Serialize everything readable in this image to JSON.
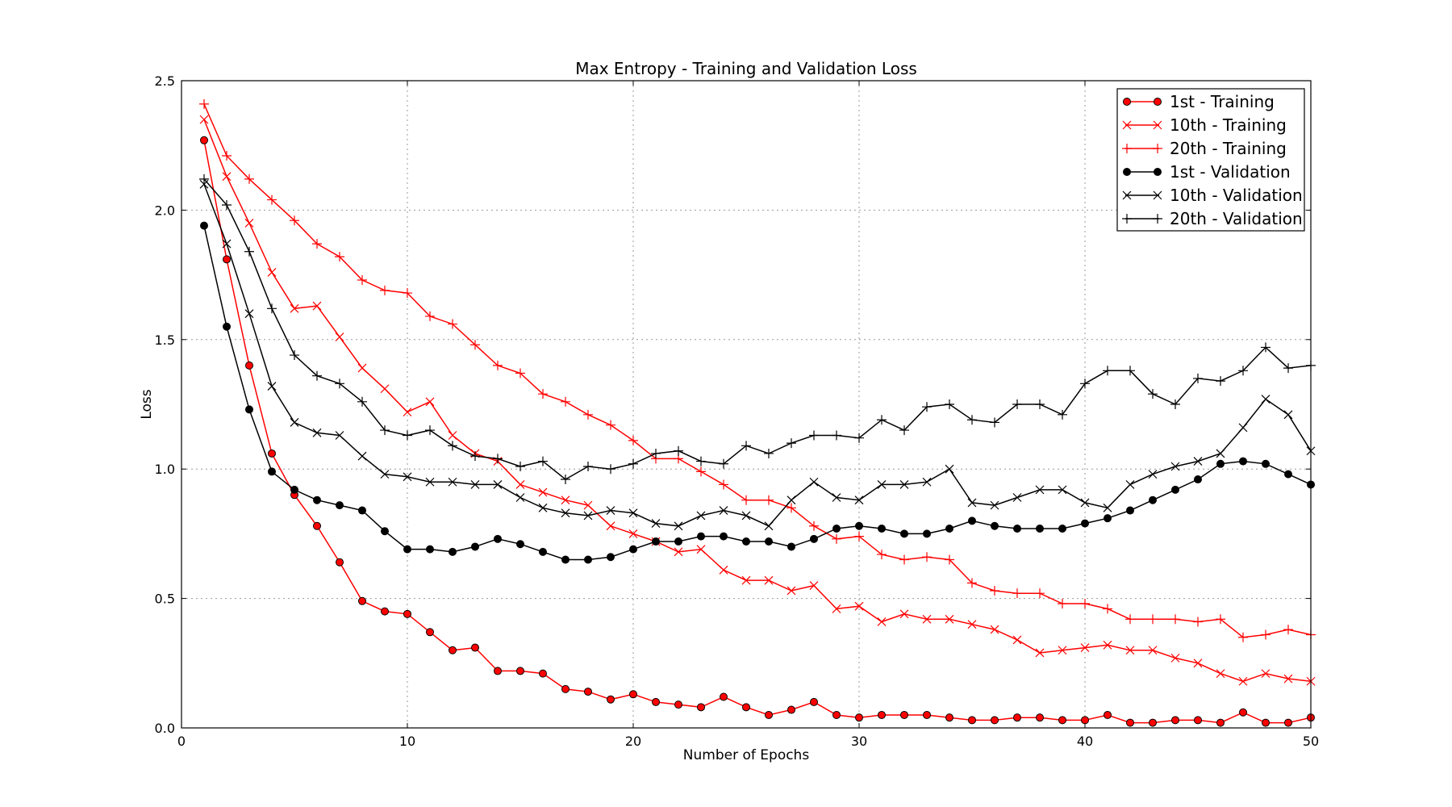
{
  "chart_data": {
    "type": "line",
    "title": "Max Entropy - Training and Validation Loss",
    "xlabel": "Number of Epochs",
    "ylabel": "Loss",
    "xlim": [
      0,
      50
    ],
    "ylim": [
      0,
      2.5
    ],
    "xticks": [
      0,
      10,
      20,
      30,
      40,
      50
    ],
    "yticks": [
      0.0,
      0.5,
      1.0,
      1.5,
      2.0,
      2.5
    ],
    "xtick_labels": [
      "0",
      "10",
      "20",
      "30",
      "40",
      "50"
    ],
    "ytick_labels": [
      "0.0",
      "0.5",
      "1.0",
      "1.5",
      "2.0",
      "2.5"
    ],
    "grid": true,
    "legend_position": "top-right",
    "x": [
      1,
      2,
      3,
      4,
      5,
      6,
      7,
      8,
      9,
      10,
      11,
      12,
      13,
      14,
      15,
      16,
      17,
      18,
      19,
      20,
      21,
      22,
      23,
      24,
      25,
      26,
      27,
      28,
      29,
      30,
      31,
      32,
      33,
      34,
      35,
      36,
      37,
      38,
      39,
      40,
      41,
      42,
      43,
      44,
      45,
      46,
      47,
      48,
      49,
      50
    ],
    "series": [
      {
        "name": "1st - Training",
        "color": "#ff0000",
        "marker": "circle",
        "values": [
          2.27,
          1.81,
          1.4,
          1.06,
          0.9,
          0.78,
          0.64,
          0.49,
          0.45,
          0.44,
          0.37,
          0.3,
          0.31,
          0.22,
          0.22,
          0.21,
          0.15,
          0.14,
          0.11,
          0.13,
          0.1,
          0.09,
          0.08,
          0.12,
          0.08,
          0.05,
          0.07,
          0.1,
          0.05,
          0.04,
          0.05,
          0.05,
          0.05,
          0.04,
          0.03,
          0.03,
          0.04,
          0.04,
          0.03,
          0.03,
          0.05,
          0.02,
          0.02,
          0.03,
          0.03,
          0.02,
          0.06,
          0.02,
          0.02,
          0.04
        ]
      },
      {
        "name": "10th - Training",
        "color": "#ff0000",
        "marker": "x",
        "values": [
          2.35,
          2.13,
          1.95,
          1.76,
          1.62,
          1.63,
          1.51,
          1.39,
          1.31,
          1.22,
          1.26,
          1.13,
          1.06,
          1.03,
          0.94,
          0.91,
          0.88,
          0.86,
          0.78,
          0.75,
          0.72,
          0.68,
          0.69,
          0.61,
          0.57,
          0.57,
          0.53,
          0.55,
          0.46,
          0.47,
          0.41,
          0.44,
          0.42,
          0.42,
          0.4,
          0.38,
          0.34,
          0.29,
          0.3,
          0.31,
          0.32,
          0.3,
          0.3,
          0.27,
          0.25,
          0.21,
          0.18,
          0.21,
          0.19,
          0.18
        ]
      },
      {
        "name": "20th - Training",
        "color": "#ff0000",
        "marker": "plus",
        "values": [
          2.41,
          2.21,
          2.12,
          2.04,
          1.96,
          1.87,
          1.82,
          1.73,
          1.69,
          1.68,
          1.59,
          1.56,
          1.48,
          1.4,
          1.37,
          1.29,
          1.26,
          1.21,
          1.17,
          1.11,
          1.04,
          1.04,
          0.99,
          0.94,
          0.88,
          0.88,
          0.85,
          0.78,
          0.73,
          0.74,
          0.67,
          0.65,
          0.66,
          0.65,
          0.56,
          0.53,
          0.52,
          0.52,
          0.48,
          0.48,
          0.46,
          0.42,
          0.42,
          0.42,
          0.41,
          0.42,
          0.35,
          0.36,
          0.38,
          0.36
        ]
      },
      {
        "name": "1st - Validation",
        "color": "#000000",
        "marker": "circle",
        "values": [
          1.94,
          1.55,
          1.23,
          0.99,
          0.92,
          0.88,
          0.86,
          0.84,
          0.76,
          0.69,
          0.69,
          0.68,
          0.7,
          0.73,
          0.71,
          0.68,
          0.65,
          0.65,
          0.66,
          0.69,
          0.72,
          0.72,
          0.74,
          0.74,
          0.72,
          0.72,
          0.7,
          0.73,
          0.77,
          0.78,
          0.77,
          0.75,
          0.75,
          0.77,
          0.8,
          0.78,
          0.77,
          0.77,
          0.77,
          0.79,
          0.81,
          0.84,
          0.88,
          0.92,
          0.96,
          1.02,
          1.03,
          1.02,
          0.98,
          0.94
        ]
      },
      {
        "name": "10th - Validation",
        "color": "#000000",
        "marker": "x",
        "values": [
          2.1,
          1.87,
          1.6,
          1.32,
          1.18,
          1.14,
          1.13,
          1.05,
          0.98,
          0.97,
          0.95,
          0.95,
          0.94,
          0.94,
          0.89,
          0.85,
          0.83,
          0.82,
          0.84,
          0.83,
          0.79,
          0.78,
          0.82,
          0.84,
          0.82,
          0.78,
          0.88,
          0.95,
          0.89,
          0.88,
          0.94,
          0.94,
          0.95,
          1.0,
          0.87,
          0.86,
          0.89,
          0.92,
          0.92,
          0.87,
          0.85,
          0.94,
          0.98,
          1.01,
          1.03,
          1.06,
          1.16,
          1.27,
          1.21,
          1.07
        ]
      },
      {
        "name": "20th - Validation",
        "color": "#000000",
        "marker": "plus",
        "values": [
          2.12,
          2.02,
          1.84,
          1.62,
          1.44,
          1.36,
          1.33,
          1.26,
          1.15,
          1.13,
          1.15,
          1.09,
          1.05,
          1.04,
          1.01,
          1.03,
          0.96,
          1.01,
          1.0,
          1.02,
          1.06,
          1.07,
          1.03,
          1.02,
          1.09,
          1.06,
          1.1,
          1.13,
          1.13,
          1.12,
          1.19,
          1.15,
          1.24,
          1.25,
          1.19,
          1.18,
          1.25,
          1.25,
          1.21,
          1.33,
          1.38,
          1.38,
          1.29,
          1.25,
          1.35,
          1.34,
          1.38,
          1.47,
          1.39,
          1.4
        ]
      }
    ]
  }
}
